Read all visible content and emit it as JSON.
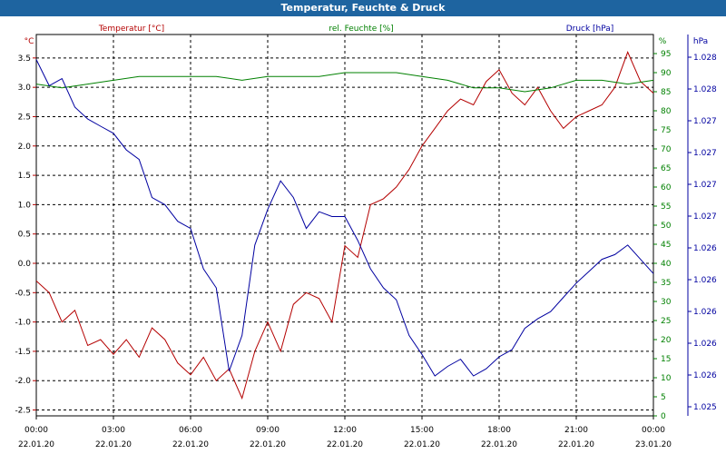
{
  "window": {
    "title": "Temperatur, Feuchte & Druck"
  },
  "colors": {
    "temperature": "#b40000",
    "humidity": "#008000",
    "pressure": "#0000a0",
    "titlebar": "#1e64a0",
    "grid": "#000000",
    "tick_text": "#000000"
  },
  "chart_data": {
    "type": "line",
    "title": "Temperatur, Feuchte & Druck",
    "grid": true,
    "x_axis": {
      "tick_labels": [
        {
          "time": "00:00",
          "date": "22.01.20"
        },
        {
          "time": "03:00",
          "date": "22.01.20"
        },
        {
          "time": "06:00",
          "date": "22.01.20"
        },
        {
          "time": "09:00",
          "date": "22.01.20"
        },
        {
          "time": "12:00",
          "date": "22.01.20"
        },
        {
          "time": "15:00",
          "date": "22.01.20"
        },
        {
          "time": "18:00",
          "date": "22.01.20"
        },
        {
          "time": "21:00",
          "date": "22.01.20"
        },
        {
          "time": "00:00",
          "date": "23.01.20"
        }
      ],
      "range_hours": [
        0,
        24
      ]
    },
    "axes": {
      "temperature": {
        "unit_label": "°C",
        "ylim": [
          -2.6,
          3.9
        ],
        "ticks": [
          "3.5",
          "3.0",
          "2.5",
          "2.0",
          "1.5",
          "1.0",
          "0.5",
          "0.0",
          "-0.5",
          "-1.0",
          "-1.5",
          "-2.0",
          "-2.5"
        ]
      },
      "humidity": {
        "unit_label": "%",
        "ylim": [
          0,
          100
        ],
        "ticks": [
          "95",
          "90",
          "85",
          "80",
          "75",
          "70",
          "65",
          "60",
          "55",
          "50",
          "45",
          "40",
          "35",
          "30",
          "25",
          "20",
          "15",
          "10",
          "5",
          "0"
        ]
      },
      "pressure": {
        "unit_label": "hPa",
        "ticks": [
          "1.028",
          "1.028",
          "1.027",
          "1.027",
          "1.027",
          "1.027",
          "1.026",
          "1.026",
          "1.026",
          "1.026",
          "1.026",
          "1.025"
        ]
      }
    },
    "series": [
      {
        "name": "Temperatur [°C]",
        "axis": "temperature",
        "color": "#b40000",
        "x": [
          0,
          0.5,
          1,
          1.5,
          2,
          2.5,
          3,
          3.5,
          4,
          4.5,
          5,
          5.5,
          6,
          6.5,
          7,
          7.5,
          8,
          8.5,
          9,
          9.5,
          10,
          10.5,
          11,
          11.5,
          12,
          12.5,
          13,
          13.5,
          14,
          14.5,
          15,
          15.5,
          16,
          16.5,
          17,
          17.5,
          18,
          18.5,
          19,
          19.5,
          20,
          20.5,
          21,
          21.5,
          22,
          22.5,
          23,
          23.5,
          24
        ],
        "values": [
          -0.3,
          -0.5,
          -1.0,
          -0.8,
          -1.4,
          -1.3,
          -1.55,
          -1.3,
          -1.6,
          -1.1,
          -1.3,
          -1.7,
          -1.9,
          -1.6,
          -2.0,
          -1.8,
          -2.3,
          -1.5,
          -1.0,
          -1.5,
          -0.7,
          -0.5,
          -0.6,
          -1.0,
          0.3,
          0.1,
          1.0,
          1.1,
          1.3,
          1.6,
          2.0,
          2.3,
          2.6,
          2.8,
          2.7,
          3.1,
          3.3,
          2.9,
          2.7,
          3.0,
          2.6,
          2.3,
          2.5,
          2.6,
          2.7,
          3.0,
          3.6,
          3.1,
          2.9
        ]
      },
      {
        "name": "rel. Feuchte [%]",
        "axis": "humidity",
        "color": "#008000",
        "x": [
          0,
          1,
          2,
          3,
          4,
          5,
          6,
          7,
          8,
          9,
          10,
          11,
          12,
          13,
          14,
          15,
          16,
          17,
          18,
          19,
          20,
          21,
          22,
          23,
          24
        ],
        "values": [
          87,
          86,
          87,
          88,
          89,
          89,
          89,
          89,
          88,
          89,
          89,
          89,
          90,
          90,
          90,
          89,
          88,
          86,
          86,
          85,
          86,
          88,
          88,
          87,
          88
        ]
      },
      {
        "name": "Druck [hPa]",
        "axis": "pressure",
        "color": "#0000a0",
        "x": [
          0,
          0.5,
          1,
          1.5,
          2,
          2.5,
          3,
          3.5,
          4,
          4.5,
          5,
          5.5,
          6,
          6.5,
          7,
          7.5,
          8,
          8.5,
          9,
          9.5,
          10,
          10.5,
          11,
          11.5,
          12,
          12.5,
          13,
          13.5,
          14,
          14.5,
          15,
          15.5,
          16,
          16.5,
          17,
          17.5,
          18,
          18.5,
          19,
          19.5,
          20,
          20.5,
          21,
          21.5,
          22,
          22.5,
          23,
          23.5,
          24
        ],
        "values": [
          1.02806,
          1.02795,
          1.02798,
          1.02786,
          1.02781,
          1.02778,
          1.02775,
          1.02768,
          1.02764,
          1.02748,
          1.02745,
          1.02738,
          1.02735,
          1.02718,
          1.0271,
          1.02675,
          1.0269,
          1.02728,
          1.02743,
          1.02755,
          1.02748,
          1.02735,
          1.02742,
          1.0274,
          1.0274,
          1.0273,
          1.02718,
          1.0271,
          1.02705,
          1.0269,
          1.02682,
          1.02673,
          1.02677,
          1.0268,
          1.02673,
          1.02676,
          1.02681,
          1.02684,
          1.02693,
          1.02697,
          1.027,
          1.02706,
          1.02712,
          1.02717,
          1.02722,
          1.02724,
          1.02728,
          1.02722,
          1.02716
        ]
      }
    ]
  }
}
